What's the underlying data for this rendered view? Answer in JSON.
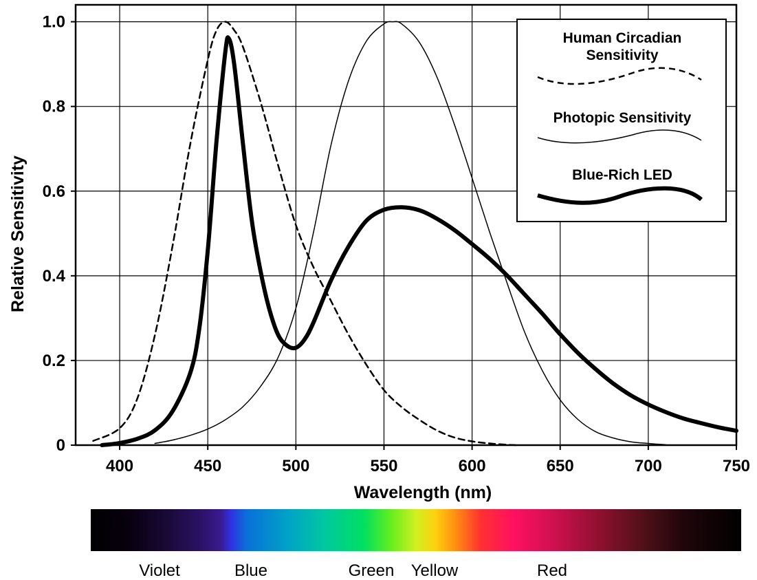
{
  "chart_data": {
    "type": "line",
    "xlabel": "Wavelength (nm)",
    "ylabel": "Relative Sensitivity",
    "xlim": [
      375,
      750
    ],
    "ylim": [
      0,
      1.04
    ],
    "grid": true,
    "xticks": [
      400,
      450,
      500,
      550,
      600,
      650,
      700,
      750
    ],
    "xtick_labels": [
      "400",
      "450",
      "500",
      "550",
      "600",
      "650",
      "700",
      "750"
    ],
    "yticks": [
      0,
      0.2,
      0.4,
      0.6,
      0.8,
      1.0
    ],
    "ytick_labels": [
      "0",
      "0.2",
      "0.4",
      "0.6",
      "0.8",
      "1.0"
    ],
    "legend_position": "top-right",
    "series": [
      {
        "name": "Human Circadian Sensitivity",
        "style": "dashed",
        "x": [
          385,
          400,
          410,
          420,
          430,
          440,
          450,
          455,
          460,
          465,
          470,
          480,
          490,
          500,
          510,
          520,
          530,
          540,
          550,
          560,
          570,
          580,
          590,
          600,
          610,
          620,
          625
        ],
        "y": [
          0.01,
          0.04,
          0.11,
          0.26,
          0.47,
          0.71,
          0.91,
          0.98,
          1.0,
          0.98,
          0.94,
          0.81,
          0.66,
          0.52,
          0.42,
          0.34,
          0.26,
          0.19,
          0.13,
          0.09,
          0.06,
          0.035,
          0.018,
          0.009,
          0.004,
          0.001,
          0.0
        ]
      },
      {
        "name": "Photopic Sensitivity",
        "style": "thin",
        "x": [
          420,
          430,
          440,
          450,
          460,
          470,
          480,
          490,
          500,
          510,
          520,
          530,
          540,
          550,
          555,
          560,
          570,
          580,
          590,
          600,
          610,
          620,
          630,
          640,
          650,
          660,
          670,
          680,
          690,
          700,
          710
        ],
        "y": [
          0.004,
          0.012,
          0.023,
          0.038,
          0.06,
          0.091,
          0.139,
          0.208,
          0.323,
          0.503,
          0.71,
          0.862,
          0.954,
          0.995,
          1.0,
          0.995,
          0.952,
          0.87,
          0.757,
          0.631,
          0.503,
          0.381,
          0.265,
          0.175,
          0.107,
          0.061,
          0.032,
          0.017,
          0.008,
          0.004,
          0.001
        ]
      },
      {
        "name": "Blue-Rich LED",
        "style": "thick",
        "x": [
          390,
          400,
          410,
          420,
          430,
          440,
          445,
          450,
          455,
          460,
          462,
          465,
          470,
          475,
          480,
          485,
          490,
          495,
          500,
          505,
          510,
          520,
          530,
          540,
          550,
          560,
          570,
          580,
          590,
          600,
          610,
          620,
          630,
          640,
          650,
          660,
          670,
          680,
          690,
          700,
          710,
          720,
          730,
          740,
          750
        ],
        "y": [
          0.0,
          0.005,
          0.015,
          0.035,
          0.08,
          0.17,
          0.27,
          0.46,
          0.72,
          0.93,
          0.96,
          0.9,
          0.71,
          0.53,
          0.41,
          0.32,
          0.26,
          0.235,
          0.23,
          0.25,
          0.29,
          0.39,
          0.47,
          0.53,
          0.556,
          0.562,
          0.555,
          0.535,
          0.508,
          0.475,
          0.44,
          0.4,
          0.355,
          0.31,
          0.262,
          0.218,
          0.18,
          0.146,
          0.118,
          0.096,
          0.078,
          0.063,
          0.052,
          0.042,
          0.034
        ]
      }
    ]
  },
  "spectrum_bar": {
    "labels": [
      "Violet",
      "Blue",
      "Green",
      "Yellow",
      "Red"
    ]
  }
}
